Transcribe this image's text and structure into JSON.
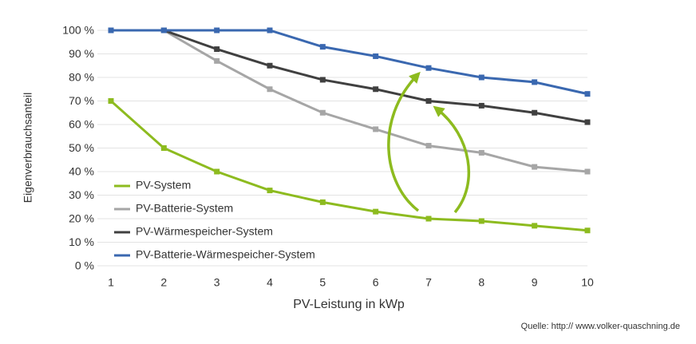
{
  "chart_data": {
    "type": "line",
    "x_label": "PV-Leistung in kWp",
    "y_label": "Eigenverbrauchsanteil",
    "source": "Quelle: http:// www.volker-quaschning.de",
    "x": [
      1,
      2,
      3,
      4,
      5,
      6,
      7,
      8,
      9,
      10
    ],
    "xlim": [
      1,
      10
    ],
    "xticks": [
      1,
      2,
      3,
      4,
      5,
      6,
      7,
      8,
      9,
      10
    ],
    "ylim": [
      0,
      100
    ],
    "yticks": [
      {
        "value": 0,
        "label": "0 %"
      },
      {
        "value": 10,
        "label": "10 %"
      },
      {
        "value": 20,
        "label": "20 %"
      },
      {
        "value": 30,
        "label": "30 %"
      },
      {
        "value": 40,
        "label": "40 %"
      },
      {
        "value": 50,
        "label": "50 %"
      },
      {
        "value": 60,
        "label": "60 %"
      },
      {
        "value": 70,
        "label": "70 %"
      },
      {
        "value": 80,
        "label": "80 %"
      },
      {
        "value": 90,
        "label": "90 %"
      },
      {
        "value": 100,
        "label": "100 %"
      }
    ],
    "grid": true,
    "legend": "lower left",
    "series": [
      {
        "name": "PV-System",
        "color": "#8dbb1f",
        "values": [
          70,
          50,
          40,
          32,
          27,
          23,
          20,
          19,
          17,
          15
        ]
      },
      {
        "name": "PV-Batterie-System",
        "color": "#a6a6a6",
        "values": [
          null,
          100,
          87,
          75,
          65,
          58,
          51,
          48,
          42,
          40
        ]
      },
      {
        "name": "PV-Wärmespeicher-System",
        "color": "#404040",
        "values": [
          null,
          100,
          92,
          85,
          79,
          75,
          70,
          68,
          65,
          61
        ]
      },
      {
        "name": "PV-Batterie-Wärmespeicher-System",
        "color": "#3a68b0",
        "values": [
          100,
          100,
          100,
          100,
          93,
          89,
          84,
          80,
          78,
          73
        ]
      }
    ]
  }
}
